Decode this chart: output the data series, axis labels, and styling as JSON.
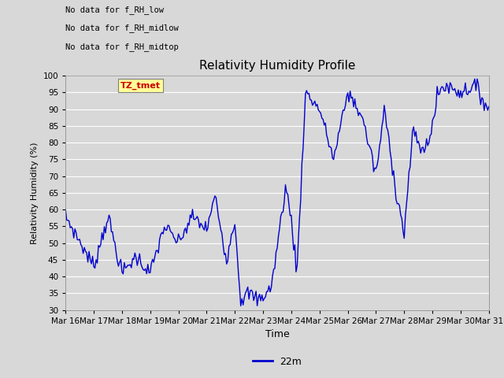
{
  "title": "Relativity Humidity Profile",
  "ylabel": "Relativity Humidity (%)",
  "xlabel": "Time",
  "ylim": [
    30,
    100
  ],
  "yticks": [
    30,
    35,
    40,
    45,
    50,
    55,
    60,
    65,
    70,
    75,
    80,
    85,
    90,
    95,
    100
  ],
  "line_color": "#0000cc",
  "line_width": 1.0,
  "bg_color": "#d8d8d8",
  "plot_bg_color": "#d8d8d8",
  "fig_bg_color": "#d8d8d8",
  "legend_label": "22m",
  "annotations": [
    "No data for f_RH_low",
    "No data for f_RH_midlow",
    "No data for f_RH_midtop"
  ],
  "legend_box_color": "#ffff99",
  "legend_box_text": "TZ_tmet",
  "legend_box_text_color": "#cc0000",
  "x_tick_labels": [
    "Mar 16",
    "Mar 17",
    "Mar 18",
    "Mar 19",
    "Mar 20",
    "Mar 21",
    "Mar 22",
    "Mar 23",
    "Mar 24",
    "Mar 25",
    "Mar 26",
    "Mar 27",
    "Mar 28",
    "Mar 29",
    "Mar 30",
    "Mar 31"
  ]
}
